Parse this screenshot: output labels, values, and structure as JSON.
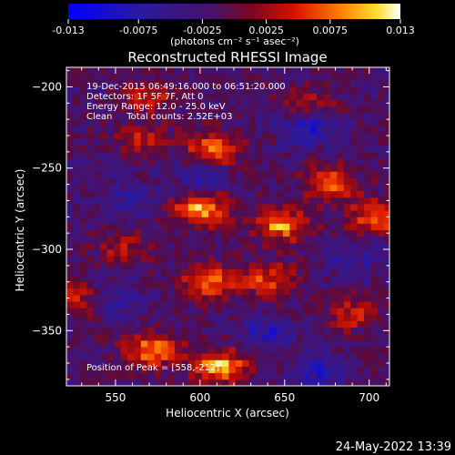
{
  "colorbar": {
    "tick_labels": [
      "-0.013",
      "-0.0075",
      "-0.0025",
      "0.0025",
      "0.0075",
      "0.013"
    ],
    "ticks": [
      -0.013,
      -0.0075,
      -0.0025,
      0.0025,
      0.0075,
      0.013
    ],
    "range": [
      -0.013,
      0.013
    ],
    "unit_label": "(photons cm⁻² s⁻¹ asec⁻²)"
  },
  "chart_data": {
    "type": "heatmap",
    "title": "Reconstructed RHESSI Image",
    "xlabel": "Heliocentric X (arcsec)",
    "ylabel": "Heliocentric Y (arcsec)",
    "xlim": [
      521,
      712
    ],
    "ylim": [
      -384,
      -188
    ],
    "x_ticks": [
      550,
      600,
      650,
      700
    ],
    "y_ticks": [
      -200,
      -250,
      -300,
      -350
    ],
    "x_tick_labels": [
      "550",
      "600",
      "650",
      "700"
    ],
    "y_tick_labels": [
      "−200",
      "−250",
      "−300",
      "−350"
    ],
    "annotations": [
      "19-Dec-2015 06:49:16.000 to 06:51:20.000",
      "Detectors: 1F 5F 7F, Att 0",
      "Energy Range: 12.0 - 25.0 keV",
      "Clean     Total counts: 2.52E+03"
    ],
    "peak_label": "Position of Peak = [558,-212]",
    "peak": [
      558,
      -212
    ],
    "sources": [
      {
        "x": 600,
        "y": -275,
        "amp": 1.0
      },
      {
        "x": 648,
        "y": -285,
        "amp": 0.85
      },
      {
        "x": 705,
        "y": -280,
        "amp": 0.8
      },
      {
        "x": 605,
        "y": -320,
        "amp": 0.8
      },
      {
        "x": 640,
        "y": -318,
        "amp": 0.65
      },
      {
        "x": 608,
        "y": -238,
        "amp": 0.85
      },
      {
        "x": 565,
        "y": -232,
        "amp": 0.45
      },
      {
        "x": 570,
        "y": -205,
        "amp": 0.55
      },
      {
        "x": 678,
        "y": -260,
        "amp": 0.75
      },
      {
        "x": 612,
        "y": -372,
        "amp": 0.95
      },
      {
        "x": 572,
        "y": -362,
        "amp": 0.85
      },
      {
        "x": 528,
        "y": -330,
        "amp": 0.7
      },
      {
        "x": 555,
        "y": -300,
        "amp": 0.4
      },
      {
        "x": 690,
        "y": -340,
        "amp": 0.5
      },
      {
        "x": 665,
        "y": -210,
        "amp": 0.4
      }
    ],
    "negative_regions": [
      {
        "x": 665,
        "y": -225,
        "amp": -0.55
      },
      {
        "x": 600,
        "y": -255,
        "amp": -0.4
      },
      {
        "x": 560,
        "y": -270,
        "amp": -0.35
      },
      {
        "x": 545,
        "y": -330,
        "amp": -0.5
      },
      {
        "x": 640,
        "y": -350,
        "amp": -0.45
      },
      {
        "x": 670,
        "y": -375,
        "amp": -0.45
      },
      {
        "x": 690,
        "y": -305,
        "amp": -0.35
      }
    ]
  },
  "footer": {
    "date": "24-May-2022 13:39"
  }
}
